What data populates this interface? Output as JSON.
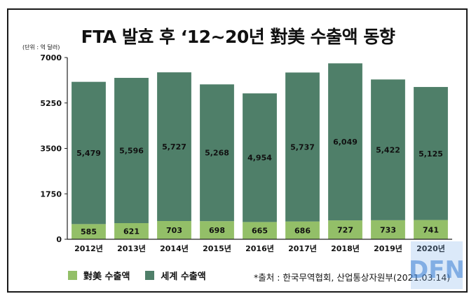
{
  "title": "FTA 발효 후 ‘12~20년 對美 수출액 동향",
  "unit_label": "(단위 : 억 달러)",
  "source": "*출처 : 한국무역협회, 산업통상자원부(2021.03.14)",
  "watermark_text": "DFN",
  "colors": {
    "us_export": "#93bf68",
    "world_export": "#4f7f69",
    "axis": "#222222"
  },
  "chart_data": {
    "type": "bar",
    "stacked": true,
    "categories": [
      "2012년",
      "2013년",
      "2014년",
      "2015년",
      "2016년",
      "2017년",
      "2018년",
      "2019년",
      "2020년"
    ],
    "series": [
      {
        "name": "對美 수출액",
        "values": [
          585,
          621,
          703,
          698,
          665,
          686,
          727,
          733,
          741
        ],
        "labels": [
          "585",
          "621",
          "703",
          "698",
          "665",
          "686",
          "727",
          "733",
          "741"
        ]
      },
      {
        "name": "세계 수출액",
        "values": [
          5479,
          5596,
          5727,
          5268,
          4954,
          5737,
          6049,
          5422,
          5125
        ],
        "labels": [
          "5,479",
          "5,596",
          "5,727",
          "5,268",
          "4,954",
          "5,737",
          "6,049",
          "5,422",
          "5,125"
        ]
      }
    ],
    "ylim": [
      0,
      7000
    ],
    "yticks": [
      0,
      1750,
      3500,
      5250,
      7000
    ],
    "ytick_labels": [
      "0",
      "1750",
      "3500",
      "5250",
      "7000"
    ],
    "grid": false,
    "legend_position": "bottom-left"
  }
}
